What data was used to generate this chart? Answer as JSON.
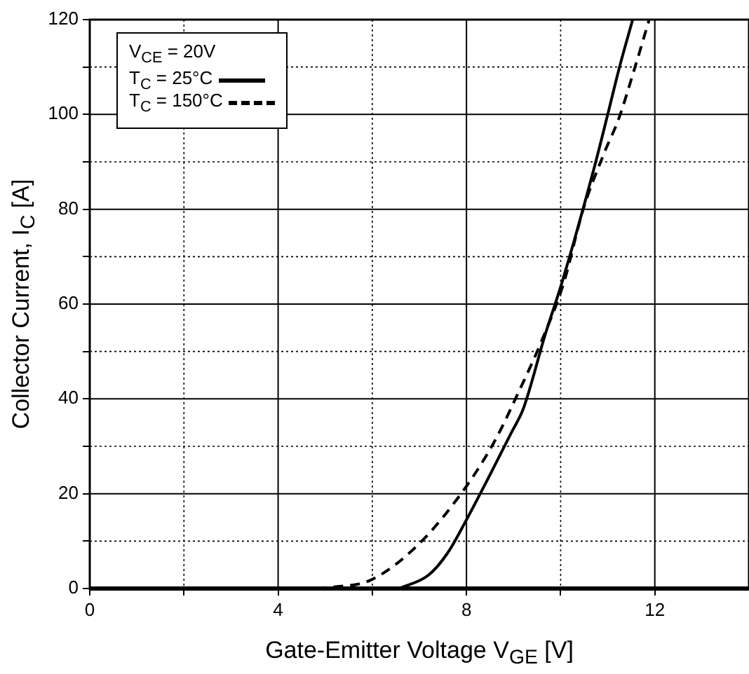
{
  "chart_data": {
    "type": "line",
    "xlabel": "Gate-Emitter Voltage V$_{GE}$ [V]",
    "ylabel": "Collector Current, I$_{C}$ [A]",
    "legend_title": "V$_{CE}$ = 20V",
    "xlim": [
      0,
      14
    ],
    "xticks": [
      0,
      {
        "value": 2,
        "label": null
      },
      4,
      {
        "value": 6,
        "label": null
      },
      8,
      {
        "value": 10,
        "label": null
      },
      12
    ],
    "ylim": [
      0,
      120
    ],
    "yticks": [
      0,
      {
        "value": 10,
        "label": null
      },
      20,
      {
        "value": 30,
        "label": null
      },
      40,
      {
        "value": 50,
        "label": null
      },
      60,
      {
        "value": 70,
        "label": null
      },
      80,
      {
        "value": 90,
        "label": null
      },
      100,
      {
        "value": 110,
        "label": null
      },
      120
    ],
    "grid": true,
    "legend": "top left",
    "marker": "none",
    "series": [
      {
        "name": "T$_{C}$ = 25°C",
        "color": "#000000",
        "line_style": "solid",
        "x": [
          6.56,
          7.19,
          7.6,
          8.0,
          8.5,
          8.96,
          9.21,
          9.67,
          10.03,
          10.7,
          11.0,
          11.25,
          11.53
        ],
        "values": [
          0,
          2.8,
          7.5,
          14.5,
          24,
          33,
          38,
          53.5,
          64.6,
          88.3,
          100,
          110,
          120
        ]
      },
      {
        "name": "T$_{C}$ = 150°C",
        "color": "#000000",
        "line_style": "dashed",
        "x": [
          4.46,
          5.16,
          5.97,
          6.99,
          8.0,
          8.61,
          9.11,
          9.57,
          10.07,
          10.47,
          10.93,
          11.23,
          11.58,
          11.88
        ],
        "values": [
          0,
          0.3,
          1.8,
          9.4,
          21.6,
          31.3,
          41.5,
          51.6,
          64.6,
          79.7,
          92,
          99,
          110,
          120
        ]
      }
    ]
  }
}
